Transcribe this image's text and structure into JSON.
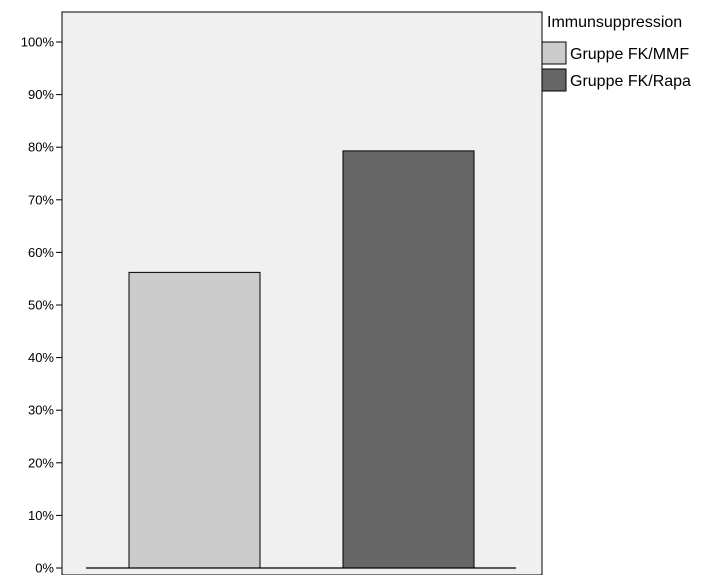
{
  "chart_data": {
    "type": "bar",
    "title": "",
    "xlabel": "",
    "ylabel": "",
    "ylim": [
      0,
      100
    ],
    "yticks": [
      0,
      10,
      20,
      30,
      40,
      50,
      60,
      70,
      80,
      90,
      100
    ],
    "ytick_suffix": "%",
    "grid": false,
    "legend": {
      "title": "Immunsuppression",
      "position": "right"
    },
    "series": [
      {
        "name": "Gruppe FK/MMF",
        "values": [
          56.2
        ],
        "color": "#cccccc"
      },
      {
        "name": "Gruppe FK/Rapa",
        "values": [
          79.3
        ],
        "color": "#666666"
      }
    ],
    "colors": {
      "plot_background": "#f0f0f0",
      "bar_stroke": "#000000"
    }
  }
}
